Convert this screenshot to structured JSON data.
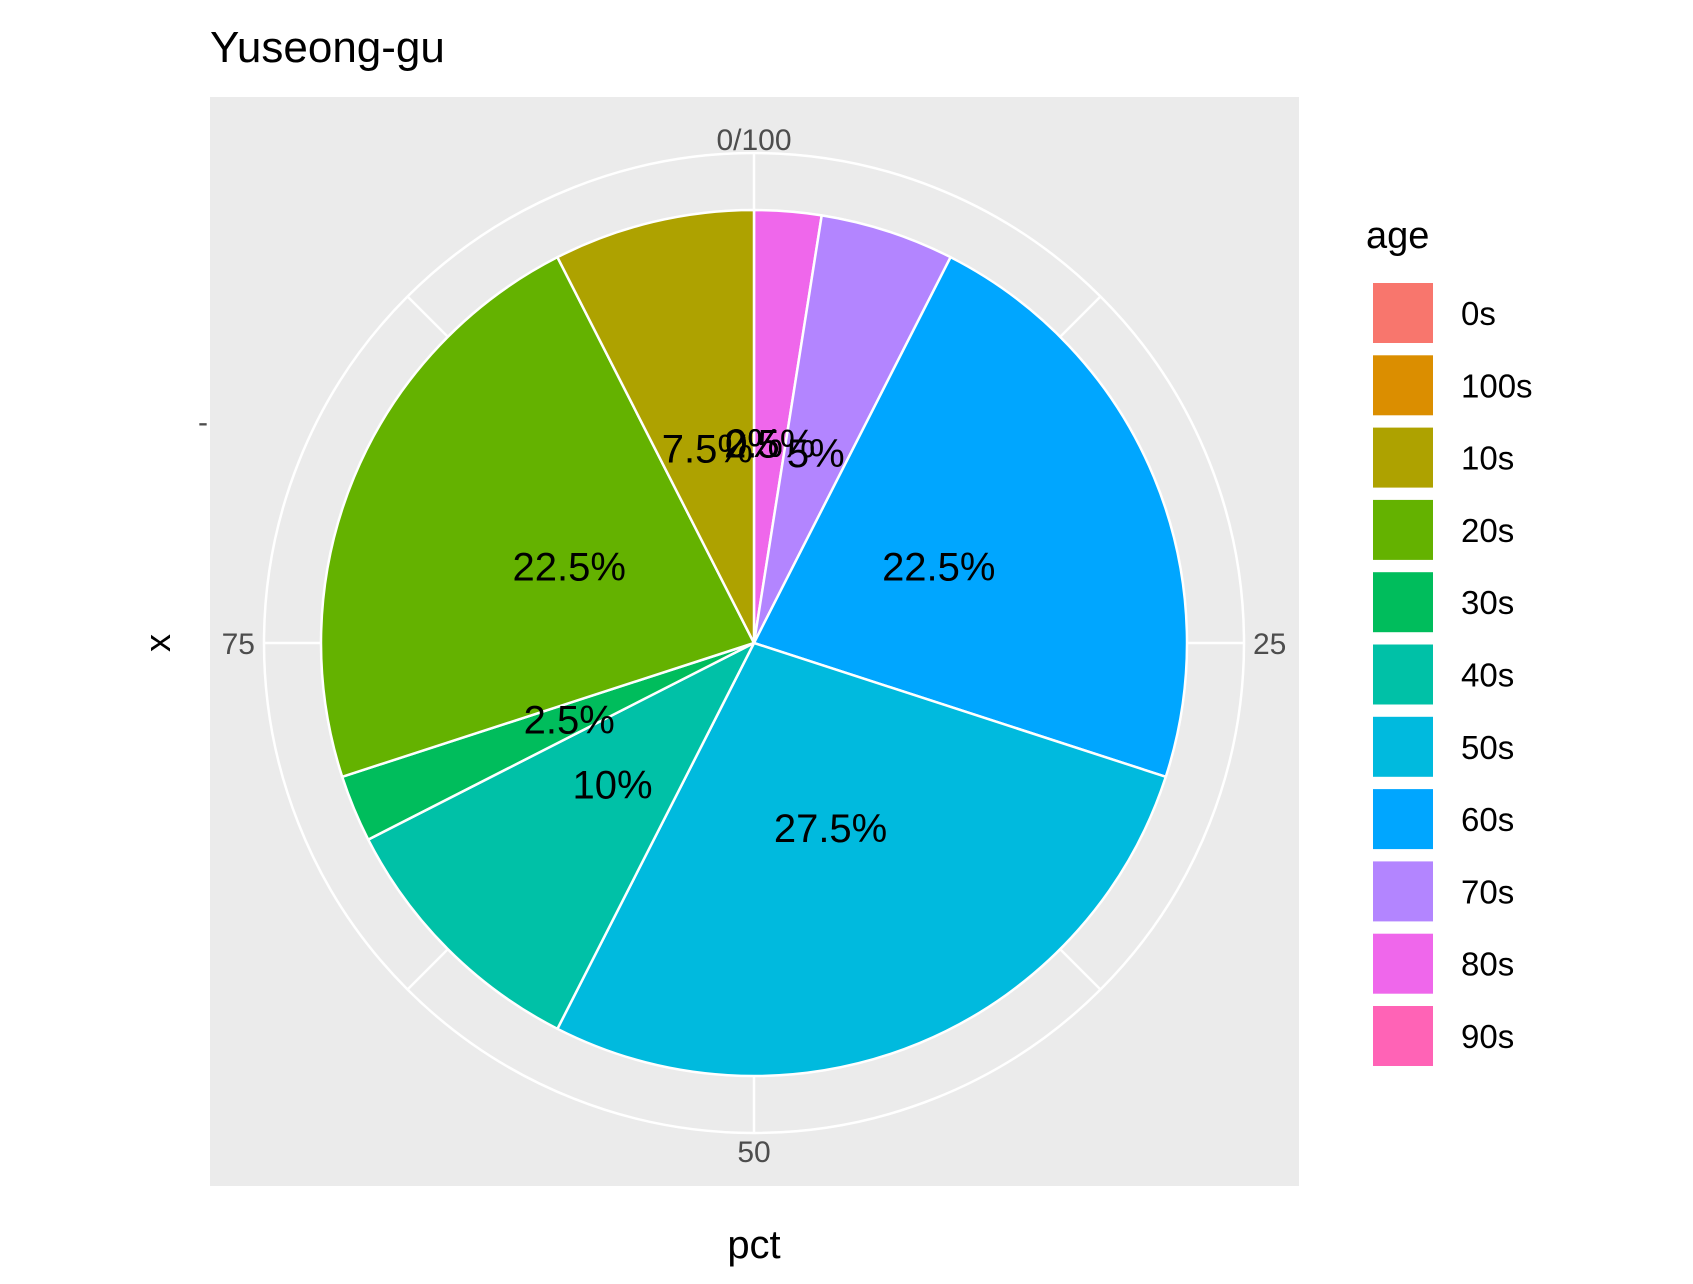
{
  "chart_data": {
    "type": "pie",
    "title": "Yuseong-gu",
    "xlabel": "pct",
    "ylabel": "x",
    "y_tick_label": "-",
    "theta_range": [
      0,
      100
    ],
    "angular_ticks": [
      {
        "value": 0,
        "label": "0/100"
      },
      {
        "value": 25,
        "label": "25"
      },
      {
        "value": 50,
        "label": "50"
      },
      {
        "value": 75,
        "label": "75"
      }
    ],
    "legend": {
      "title": "age",
      "position": "right"
    },
    "slices": [
      {
        "category": "0s",
        "value": 0,
        "label": "0%",
        "color": "#F8766D"
      },
      {
        "category": "100s",
        "value": 0,
        "label": "0%",
        "color": "#DB8E00"
      },
      {
        "category": "10s",
        "value": 7.5,
        "label": "7.5%",
        "color": "#AEA200"
      },
      {
        "category": "20s",
        "value": 22.5,
        "label": "22.5%",
        "color": "#64B200"
      },
      {
        "category": "30s",
        "value": 2.5,
        "label": "2.5%",
        "color": "#00BD5C"
      },
      {
        "category": "40s",
        "value": 10,
        "label": "10%",
        "color": "#00C1A7"
      },
      {
        "category": "50s",
        "value": 27.5,
        "label": "27.5%",
        "color": "#00BADE"
      },
      {
        "category": "60s",
        "value": 22.5,
        "label": "22.5%",
        "color": "#00A6FF"
      },
      {
        "category": "70s",
        "value": 5,
        "label": "5%",
        "color": "#B385FF"
      },
      {
        "category": "80s",
        "value": 2.5,
        "label": "2.5%",
        "color": "#EF67EB"
      },
      {
        "category": "90s",
        "value": 0,
        "label": "0%",
        "color": "#FF63B6"
      }
    ],
    "grid": true
  }
}
